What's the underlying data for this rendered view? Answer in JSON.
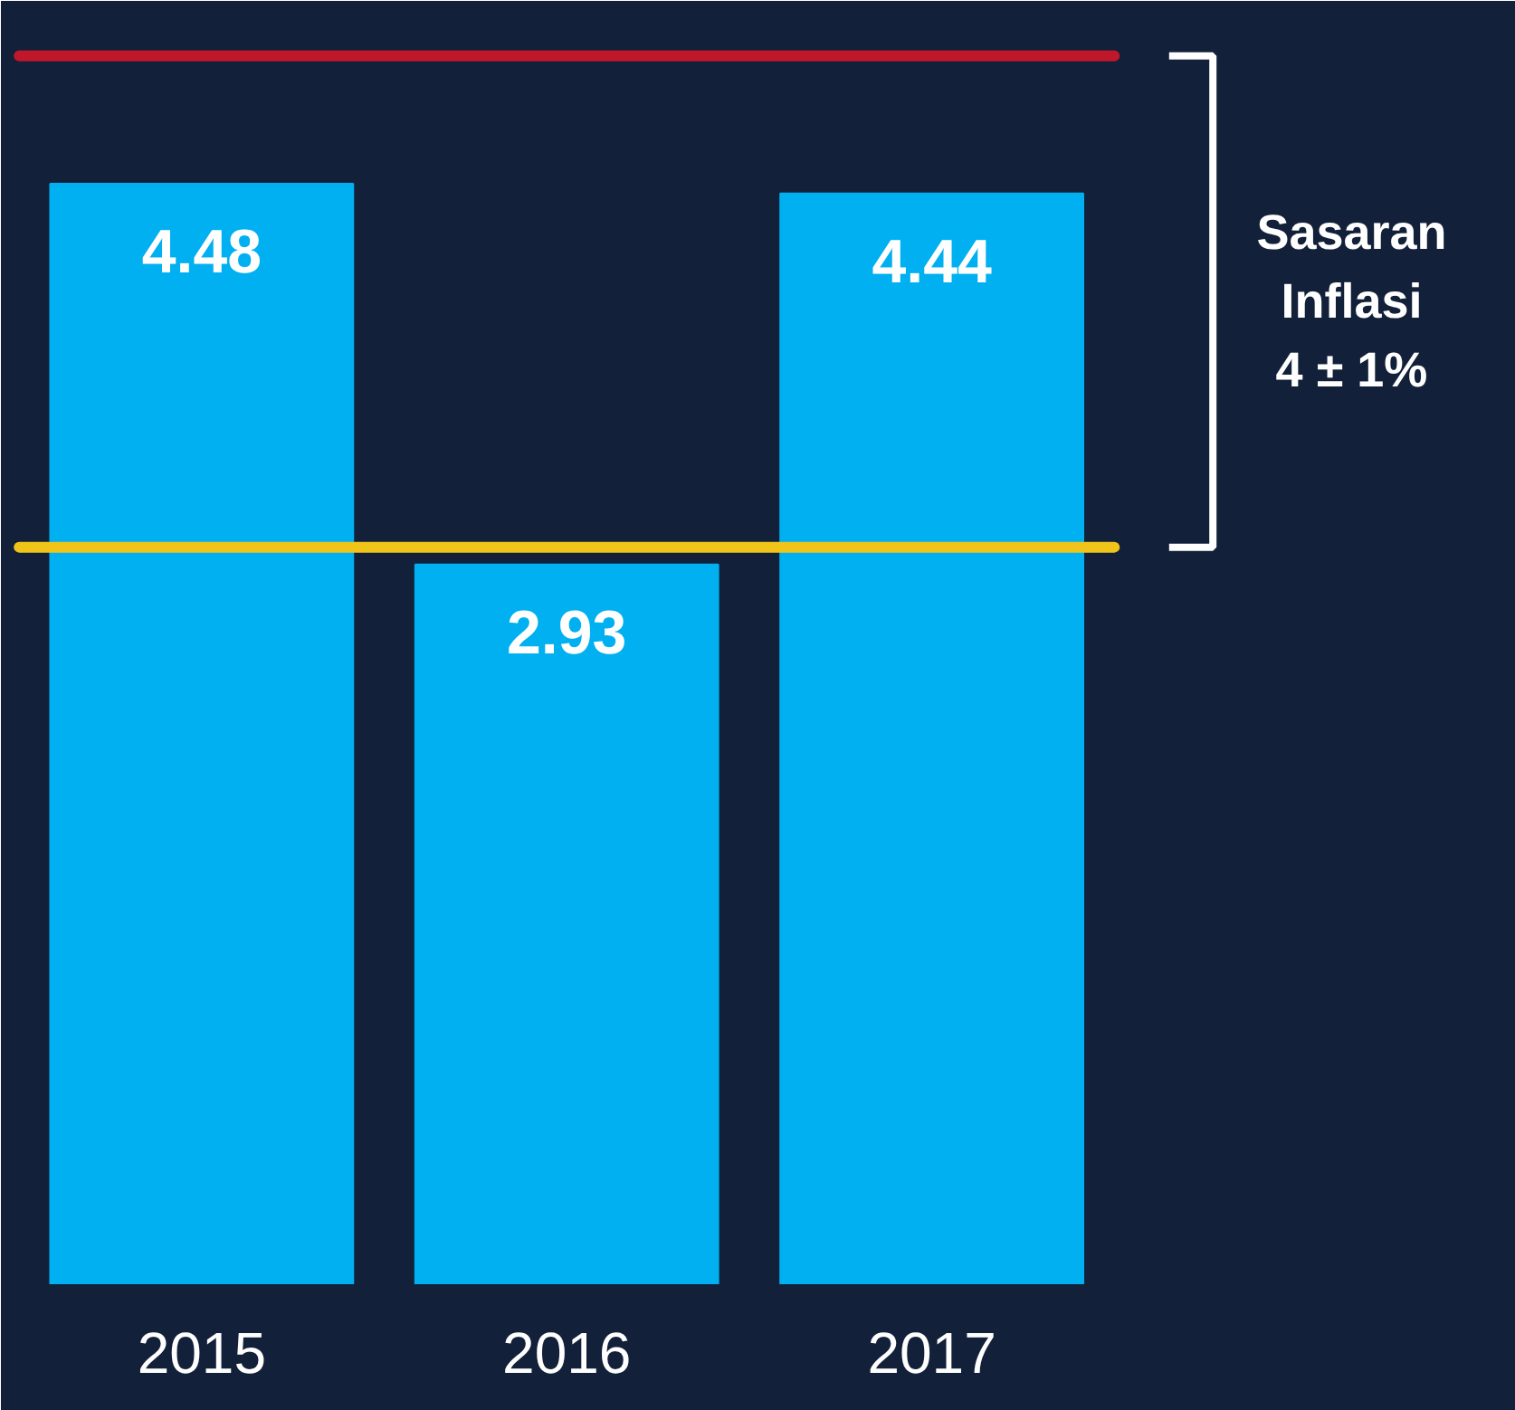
{
  "chart_data": {
    "type": "bar",
    "categories": [
      "2015",
      "2016",
      "2017"
    ],
    "values": [
      4.48,
      2.93,
      4.44
    ],
    "color": "#00b0f0",
    "data_labels": true,
    "ref_lines": [
      {
        "axis": "y",
        "value": 5,
        "label": null,
        "color": "#c0172b"
      },
      {
        "axis": "y",
        "value": 3,
        "label": null,
        "color": "#f0c419"
      }
    ],
    "annotations": [
      "Sasaran Inflasi 4 ± 1%"
    ],
    "grid": false
  }
}
